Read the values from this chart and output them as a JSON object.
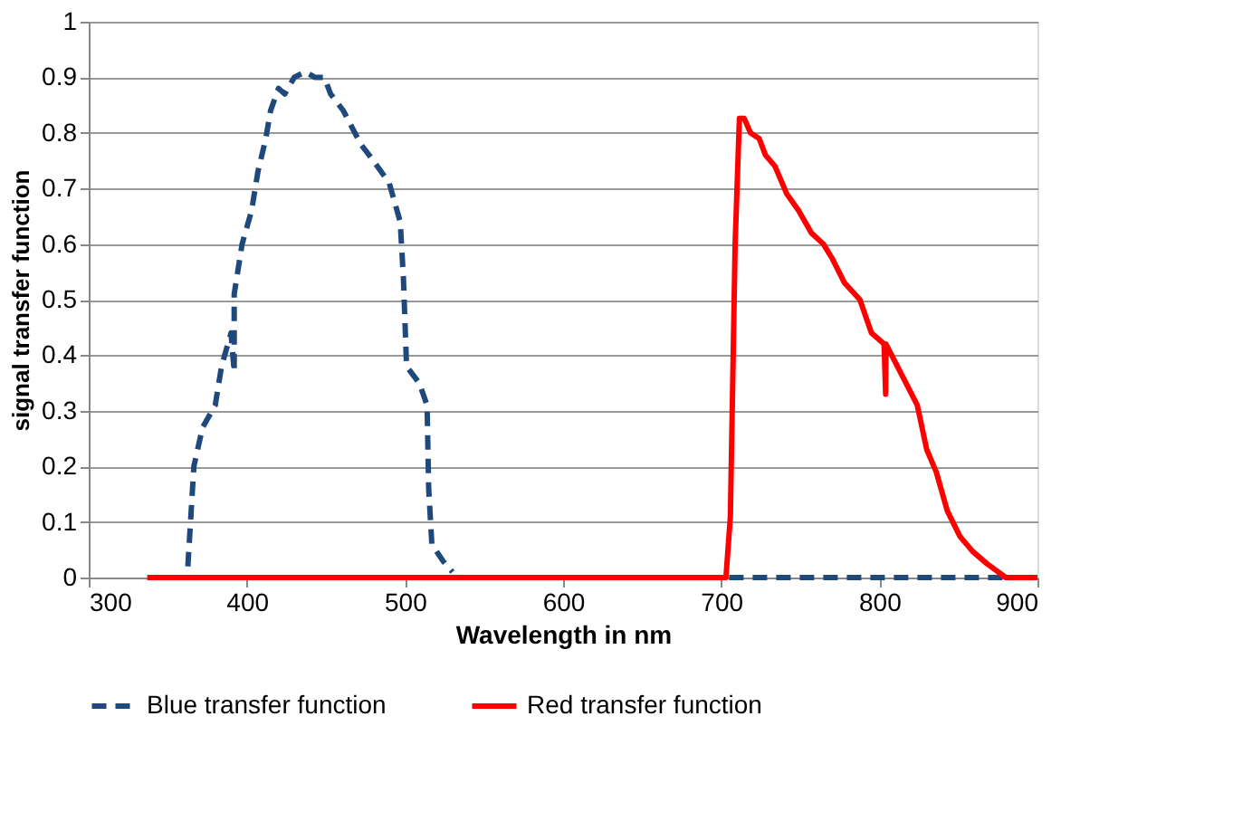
{
  "chart_data": {
    "type": "line",
    "xlabel": "Wavelength in nm",
    "ylabel": "signal transfer function",
    "xlim": [
      300,
      900
    ],
    "xticks": [
      300,
      400,
      500,
      600,
      700,
      800,
      900
    ],
    "ylim": [
      0,
      1
    ],
    "yticks": [
      0,
      0.1,
      0.2,
      0.3,
      0.4,
      0.5,
      0.6,
      0.7,
      0.8,
      0.9,
      1
    ],
    "grid": "y",
    "legend": "bottom",
    "series": [
      {
        "name": "Blue transfer function",
        "color": "#1f497d",
        "line_style": "dashed",
        "x": [
          362.7,
          364.6,
          366.5,
          372,
          380,
          384,
          390,
          392,
          392,
          397,
          403,
          407,
          412,
          415,
          420,
          424,
          430,
          437,
          443,
          449,
          453,
          461,
          472,
          480,
          490,
          497,
          499,
          501,
          509,
          514,
          515,
          517,
          524,
          530,
          600,
          705,
          880
        ],
        "values": [
          0.02,
          0.11,
          0.2,
          0.27,
          0.31,
          0.38,
          0.44,
          0.37,
          0.51,
          0.6,
          0.66,
          0.73,
          0.79,
          0.84,
          0.88,
          0.87,
          0.9,
          0.91,
          0.9,
          0.9,
          0.87,
          0.84,
          0.78,
          0.75,
          0.71,
          0.64,
          0.54,
          0.38,
          0.35,
          0.31,
          0.16,
          0.06,
          0.03,
          0.01,
          null,
          0,
          0
        ]
      },
      {
        "name": "Red transfer function",
        "color": "#ff0000",
        "line_style": "solid",
        "x": [
          337,
          700,
          703,
          705.8,
          708.8,
          711.5,
          714.6,
          718.5,
          724,
          728,
          734,
          741.5,
          749,
          757,
          764.6,
          770,
          778,
          787.7,
          795,
          803,
          804,
          804.2,
          815,
          824,
          830,
          836,
          843,
          851,
          859,
          868,
          880,
          900
        ],
        "values": [
          0,
          0,
          0,
          0.11,
          0.6,
          0.826,
          0.826,
          0.8,
          0.79,
          0.76,
          0.74,
          0.69,
          0.66,
          0.62,
          0.6,
          0.575,
          0.53,
          0.5,
          0.44,
          0.42,
          0.33,
          0.42,
          0.36,
          0.31,
          0.23,
          0.19,
          0.12,
          0.074,
          0.047,
          0.025,
          0,
          0
        ]
      }
    ]
  }
}
